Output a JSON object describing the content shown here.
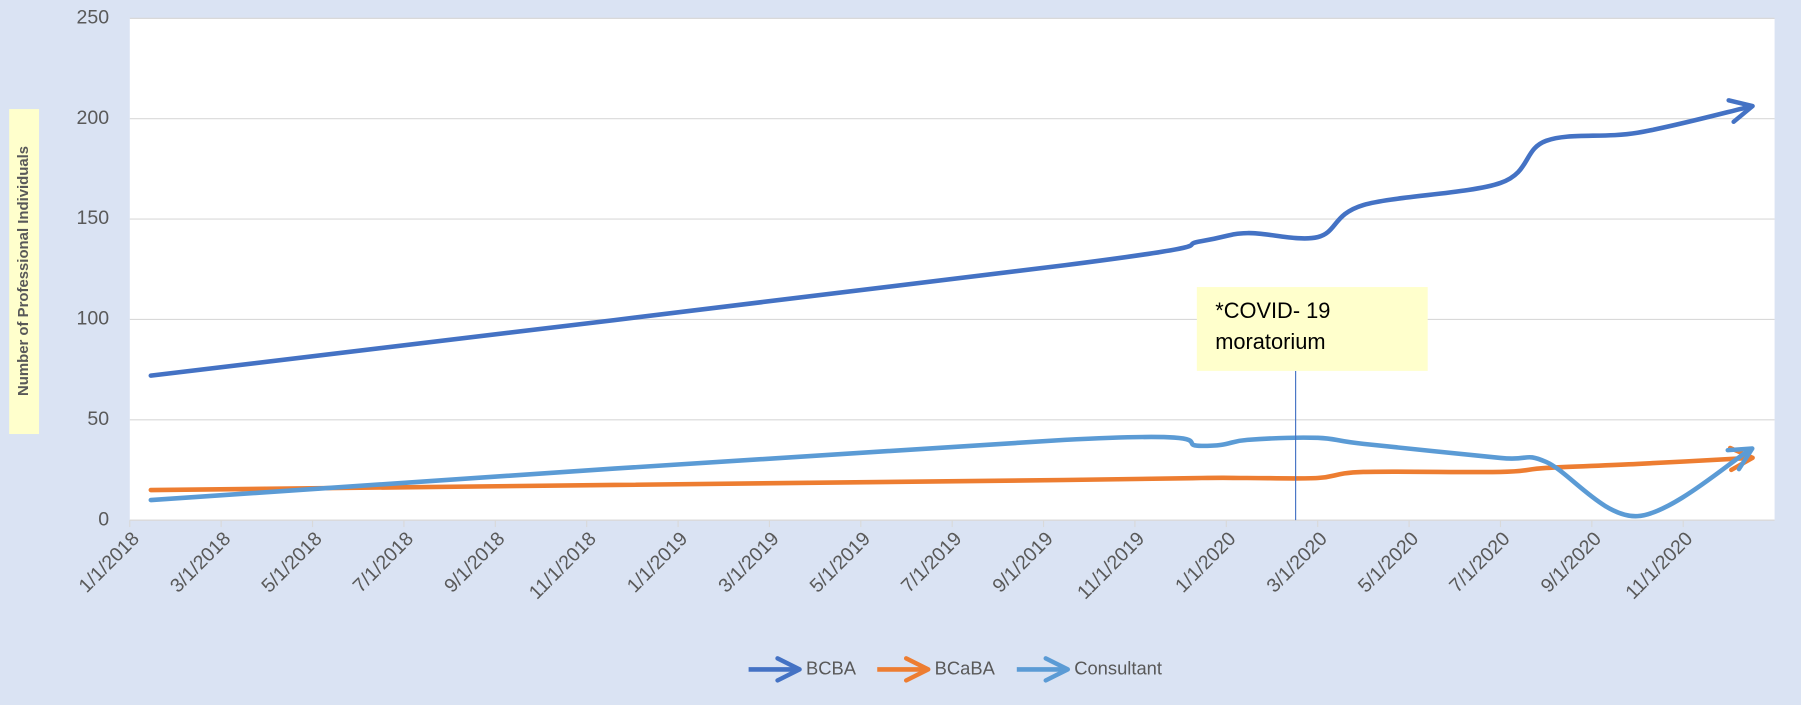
{
  "chart_data": {
    "type": "line",
    "y_label": "Number of Professional Individuals",
    "annotation": "*COVID- 19 moratorium",
    "x": [
      "1/15/2018",
      "9/15/2019",
      "12/15/2019",
      "1/15/2020",
      "3/1/2020",
      "4/1/2020",
      "7/1/2020",
      "8/1/2020",
      "10/1/2020",
      "12/15/2020"
    ],
    "series": [
      {
        "name": "BCBA",
        "color": "#4472c4",
        "values": [
          72,
          127,
          139,
          143,
          141,
          157,
          168,
          189,
          193,
          206
        ]
      },
      {
        "name": "BCaBA",
        "color": "#ed7d31",
        "values": [
          15,
          20,
          21,
          21,
          21,
          24,
          24,
          26,
          28,
          31
        ]
      },
      {
        "name": "Consultant",
        "color": "#5b9bd5",
        "values": [
          10,
          40,
          37,
          40,
          41,
          38,
          31,
          29,
          2,
          35
        ]
      }
    ],
    "ylim": [
      0,
      250
    ],
    "yticks": [
      0,
      50,
      100,
      150,
      200,
      250
    ],
    "xticks": [
      "1/1/2018",
      "3/1/2018",
      "5/1/2018",
      "7/1/2018",
      "9/1/2018",
      "11/1/2018",
      "1/1/2019",
      "3/1/2019",
      "5/1/2019",
      "7/1/2019",
      "9/1/2019",
      "11/1/2019",
      "1/1/2020",
      "3/1/2020",
      "5/1/2020",
      "7/1/2020",
      "9/1/2020",
      "11/1/2020"
    ],
    "grid": true,
    "smooth": true,
    "legend": "bottom"
  }
}
